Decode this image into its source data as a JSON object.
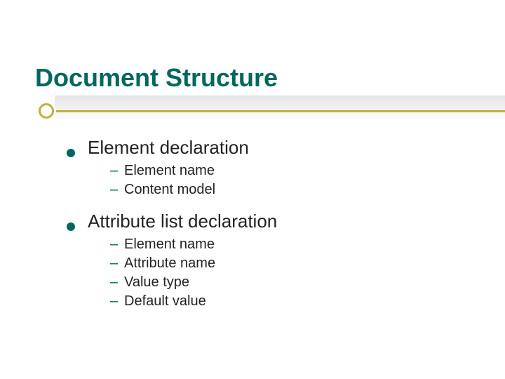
{
  "slide": {
    "title": "Document Structure",
    "title_color": "#00675f",
    "title_fontsize": 36,
    "accent_color": "#c0b040",
    "body_color": "#222222",
    "background_color": "#ffffff",
    "items": [
      {
        "label": "Element declaration",
        "children": [
          {
            "label": "Element name"
          },
          {
            "label": "Content model"
          }
        ]
      },
      {
        "label": "Attribute list declaration",
        "children": [
          {
            "label": "Element name"
          },
          {
            "label": "Attribute name"
          },
          {
            "label": "Value type"
          },
          {
            "label": "Default value"
          }
        ]
      }
    ]
  }
}
